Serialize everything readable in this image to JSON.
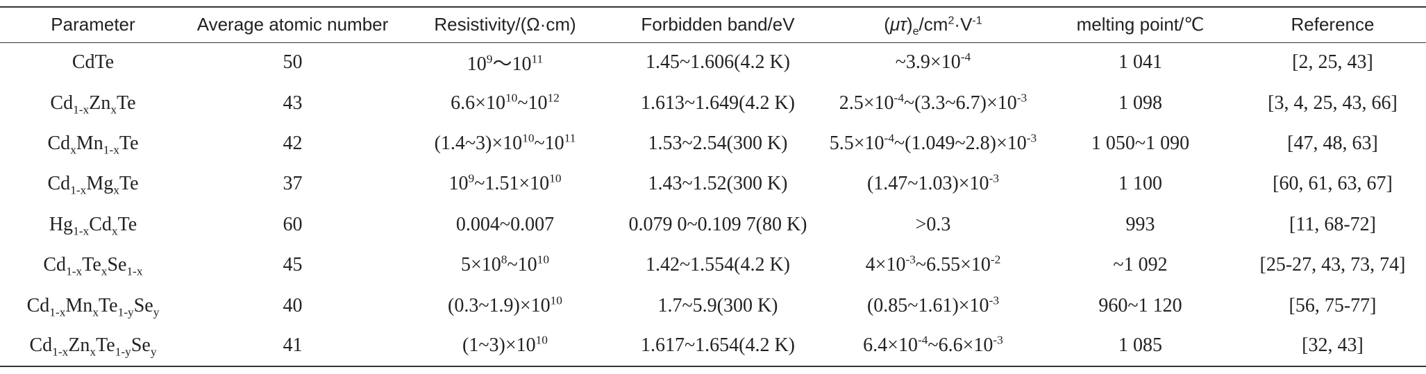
{
  "table": {
    "header": [
      "Parameter",
      "Average atomic number",
      "Resistivity/(Ω·cm)",
      "Forbidden band/eV",
      [
        {
          "t": "("
        },
        {
          "i": "μτ"
        },
        {
          "t": ")"
        },
        {
          "sub": "e"
        },
        {
          "t": "/cm"
        },
        {
          "sup": "2"
        },
        {
          "t": "·V"
        },
        {
          "sup": "-1"
        }
      ],
      "melting point/℃",
      "Reference"
    ],
    "rows": [
      [
        "CdTe",
        50,
        [
          {
            "t": "10"
          },
          {
            "sup": "9"
          },
          {
            "t": "～10"
          },
          {
            "sup": "11"
          }
        ],
        "1.45~1.606(4.2 K)",
        [
          {
            "t": "~3.9×10"
          },
          {
            "sup": "-4"
          }
        ],
        "1 041",
        "[2, 25, 43]"
      ],
      [
        [
          {
            "t": "Cd"
          },
          {
            "sub": "1-x"
          },
          {
            "t": "Zn"
          },
          {
            "sub": "x"
          },
          {
            "t": "Te"
          }
        ],
        43,
        [
          {
            "t": "6.6×10"
          },
          {
            "sup": "10"
          },
          {
            "t": "~10"
          },
          {
            "sup": "12"
          }
        ],
        "1.613~1.649(4.2 K)",
        [
          {
            "t": "2.5×10"
          },
          {
            "sup": "-4"
          },
          {
            "t": "~(3.3~6.7)×10"
          },
          {
            "sup": "-3"
          }
        ],
        "1 098",
        "[3, 4, 25, 43, 66]"
      ],
      [
        [
          {
            "t": "Cd"
          },
          {
            "sub": "x"
          },
          {
            "t": "Mn"
          },
          {
            "sub": "1-x"
          },
          {
            "t": "Te"
          }
        ],
        42,
        [
          {
            "t": "(1.4~3)×10"
          },
          {
            "sup": "10"
          },
          {
            "t": "~10"
          },
          {
            "sup": "11"
          }
        ],
        "1.53~2.54(300 K)",
        [
          {
            "t": "5.5×10"
          },
          {
            "sup": "-4"
          },
          {
            "t": "~(1.049~2.8)×10"
          },
          {
            "sup": "-3"
          }
        ],
        "1 050~1 090",
        "[47, 48, 63]"
      ],
      [
        [
          {
            "t": "Cd"
          },
          {
            "sub": "1-x"
          },
          {
            "t": "Mg"
          },
          {
            "sub": "x"
          },
          {
            "t": "Te"
          }
        ],
        37,
        [
          {
            "t": "10"
          },
          {
            "sup": "9"
          },
          {
            "t": "~1.51×10"
          },
          {
            "sup": "10"
          }
        ],
        "1.43~1.52(300 K)",
        [
          {
            "t": "(1.47~1.03)×10"
          },
          {
            "sup": "-3"
          }
        ],
        "1 100",
        "[60, 61, 63, 67]"
      ],
      [
        [
          {
            "t": "Hg"
          },
          {
            "sub": "1-x"
          },
          {
            "t": "Cd"
          },
          {
            "sub": "x"
          },
          {
            "t": "Te"
          }
        ],
        60,
        "0.004~0.007",
        "0.079 0~0.109 7(80 K)",
        ">0.3",
        "993",
        "[11, 68-72]"
      ],
      [
        [
          {
            "t": "Cd"
          },
          {
            "sub": "1-x"
          },
          {
            "t": "Te"
          },
          {
            "sub": "x"
          },
          {
            "t": "Se"
          },
          {
            "sub": "1-x"
          }
        ],
        45,
        [
          {
            "t": "5×10"
          },
          {
            "sup": "8"
          },
          {
            "t": "~10"
          },
          {
            "sup": "10"
          }
        ],
        "1.42~1.554(4.2 K)",
        [
          {
            "t": "4×10"
          },
          {
            "sup": "-3"
          },
          {
            "t": "~6.55×10"
          },
          {
            "sup": "-2"
          }
        ],
        "~1 092",
        "[25-27, 43, 73, 74]"
      ],
      [
        [
          {
            "t": "Cd"
          },
          {
            "sub": "1-x"
          },
          {
            "t": "Mn"
          },
          {
            "sub": "x"
          },
          {
            "t": "Te"
          },
          {
            "sub": "1-y"
          },
          {
            "t": "Se"
          },
          {
            "sub": "y"
          }
        ],
        40,
        [
          {
            "t": "(0.3~1.9)×10"
          },
          {
            "sup": "10"
          }
        ],
        "1.7~5.9(300 K)",
        [
          {
            "t": "(0.85~1.61)×10"
          },
          {
            "sup": "-3"
          }
        ],
        "960~1 120",
        "[56, 75-77]"
      ],
      [
        [
          {
            "t": "Cd"
          },
          {
            "sub": "1-x"
          },
          {
            "t": "Zn"
          },
          {
            "sub": "x"
          },
          {
            "t": "Te"
          },
          {
            "sub": "1-y"
          },
          {
            "t": "Se"
          },
          {
            "sub": "y"
          }
        ],
        41,
        [
          {
            "t": "(1~3)×10"
          },
          {
            "sup": "10"
          }
        ],
        "1.617~1.654(4.2 K)",
        [
          {
            "t": "6.4×10"
          },
          {
            "sup": "-4"
          },
          {
            "t": "~6.6×10"
          },
          {
            "sup": "-3"
          }
        ],
        "1 085",
        "[32, 43]"
      ]
    ]
  }
}
